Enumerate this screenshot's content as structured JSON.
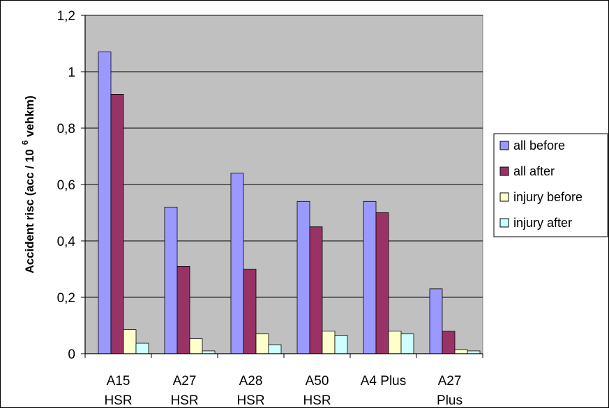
{
  "chart_data": {
    "type": "bar",
    "title": "",
    "xlabel": "",
    "ylabel": {
      "prefix": "Accident risc (acc / 10",
      "superscript": "6",
      "suffix": " vehkm)"
    },
    "ylim": [
      0,
      1.2
    ],
    "yticks": [
      "0",
      "0,2",
      "0,4",
      "0,6",
      "0,8",
      "1",
      "1,2"
    ],
    "grid": true,
    "legend_position": "right",
    "categories": [
      [
        "A15",
        "HSR"
      ],
      [
        "A27",
        "HSR"
      ],
      [
        "A28",
        "HSR"
      ],
      [
        "A50",
        "HSR"
      ],
      [
        "A4 Plus"
      ],
      [
        "A27",
        "Plus"
      ]
    ],
    "series": [
      {
        "name": "all before",
        "color": "#9999ff",
        "values": [
          1.07,
          0.52,
          0.64,
          0.54,
          0.54,
          0.23
        ]
      },
      {
        "name": "all after",
        "color": "#993366",
        "values": [
          0.92,
          0.31,
          0.3,
          0.45,
          0.5,
          0.08
        ]
      },
      {
        "name": "injury before",
        "color": "#ffffcc",
        "values": [
          0.085,
          0.053,
          0.07,
          0.08,
          0.08,
          0.014
        ]
      },
      {
        "name": "injury after",
        "color": "#ccffff",
        "values": [
          0.037,
          0.01,
          0.032,
          0.065,
          0.07,
          0.01
        ]
      }
    ],
    "plot_background": "#c0c0c0"
  }
}
